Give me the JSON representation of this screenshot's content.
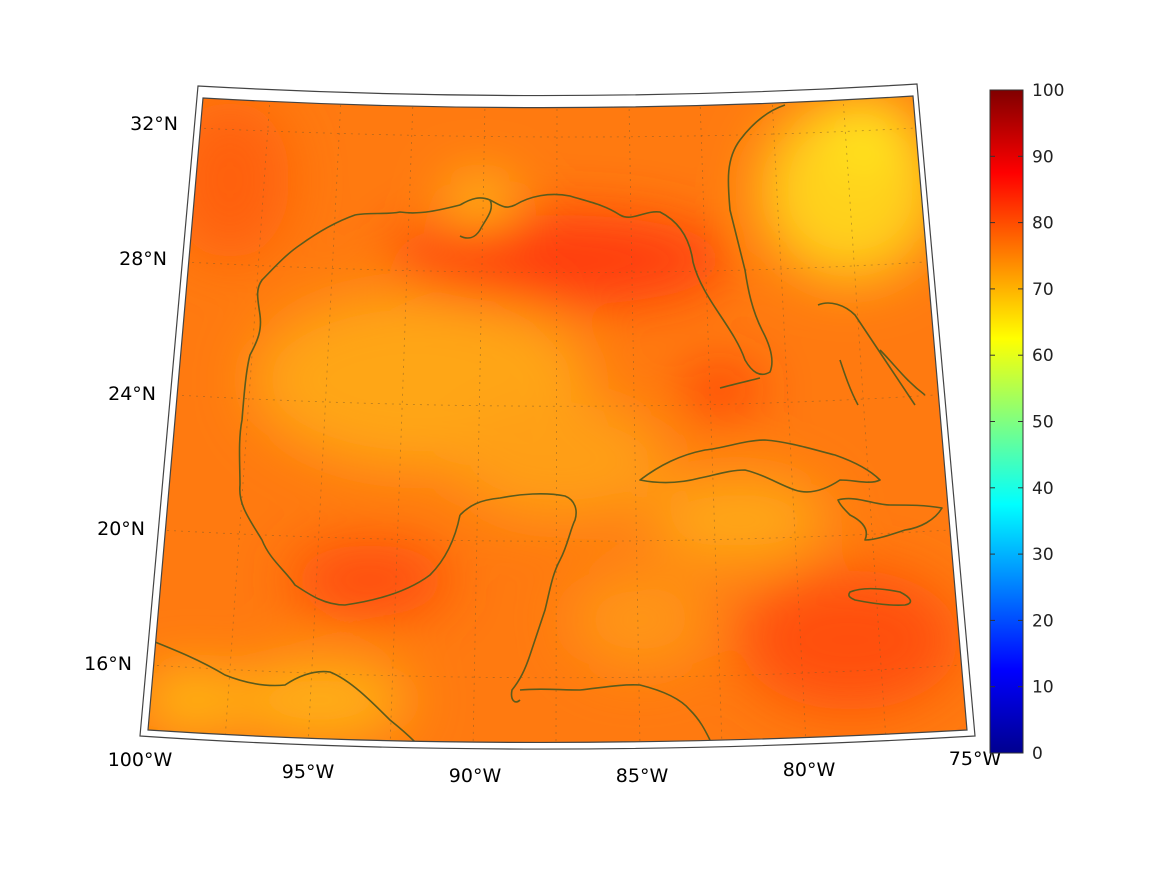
{
  "map": {
    "projection": "lambert-conic",
    "lon_range": [
      -100,
      -75
    ],
    "lat_range": [
      14,
      33
    ],
    "lon_ticks": [
      {
        "lon": -100,
        "label": "100°W"
      },
      {
        "lon": -95,
        "label": "95°W"
      },
      {
        "lon": -90,
        "label": "90°W"
      },
      {
        "lon": -85,
        "label": "85°W"
      },
      {
        "lon": -80,
        "label": "80°W"
      },
      {
        "lon": -75,
        "label": "75°W"
      }
    ],
    "lat_ticks": [
      {
        "lat": 16,
        "label": "16°N"
      },
      {
        "lat": 20,
        "label": "20°N"
      },
      {
        "lat": 24,
        "label": "24°N"
      },
      {
        "lat": 28,
        "label": "28°N"
      },
      {
        "lat": 32,
        "label": "32°N"
      }
    ],
    "coastline_color": "#5b5a1c",
    "field_colormap": "jet",
    "field_dominant_color": "#ff7a10"
  },
  "colorbar": {
    "min": 0,
    "max": 100,
    "ticks": [
      "0",
      "10",
      "20",
      "30",
      "40",
      "50",
      "60",
      "70",
      "80",
      "90",
      "100"
    ],
    "colors": [
      "#00008f",
      "#0000ff",
      "#0080ff",
      "#00ffff",
      "#80ff80",
      "#ffff00",
      "#ff8000",
      "#ff0000",
      "#800000"
    ]
  }
}
